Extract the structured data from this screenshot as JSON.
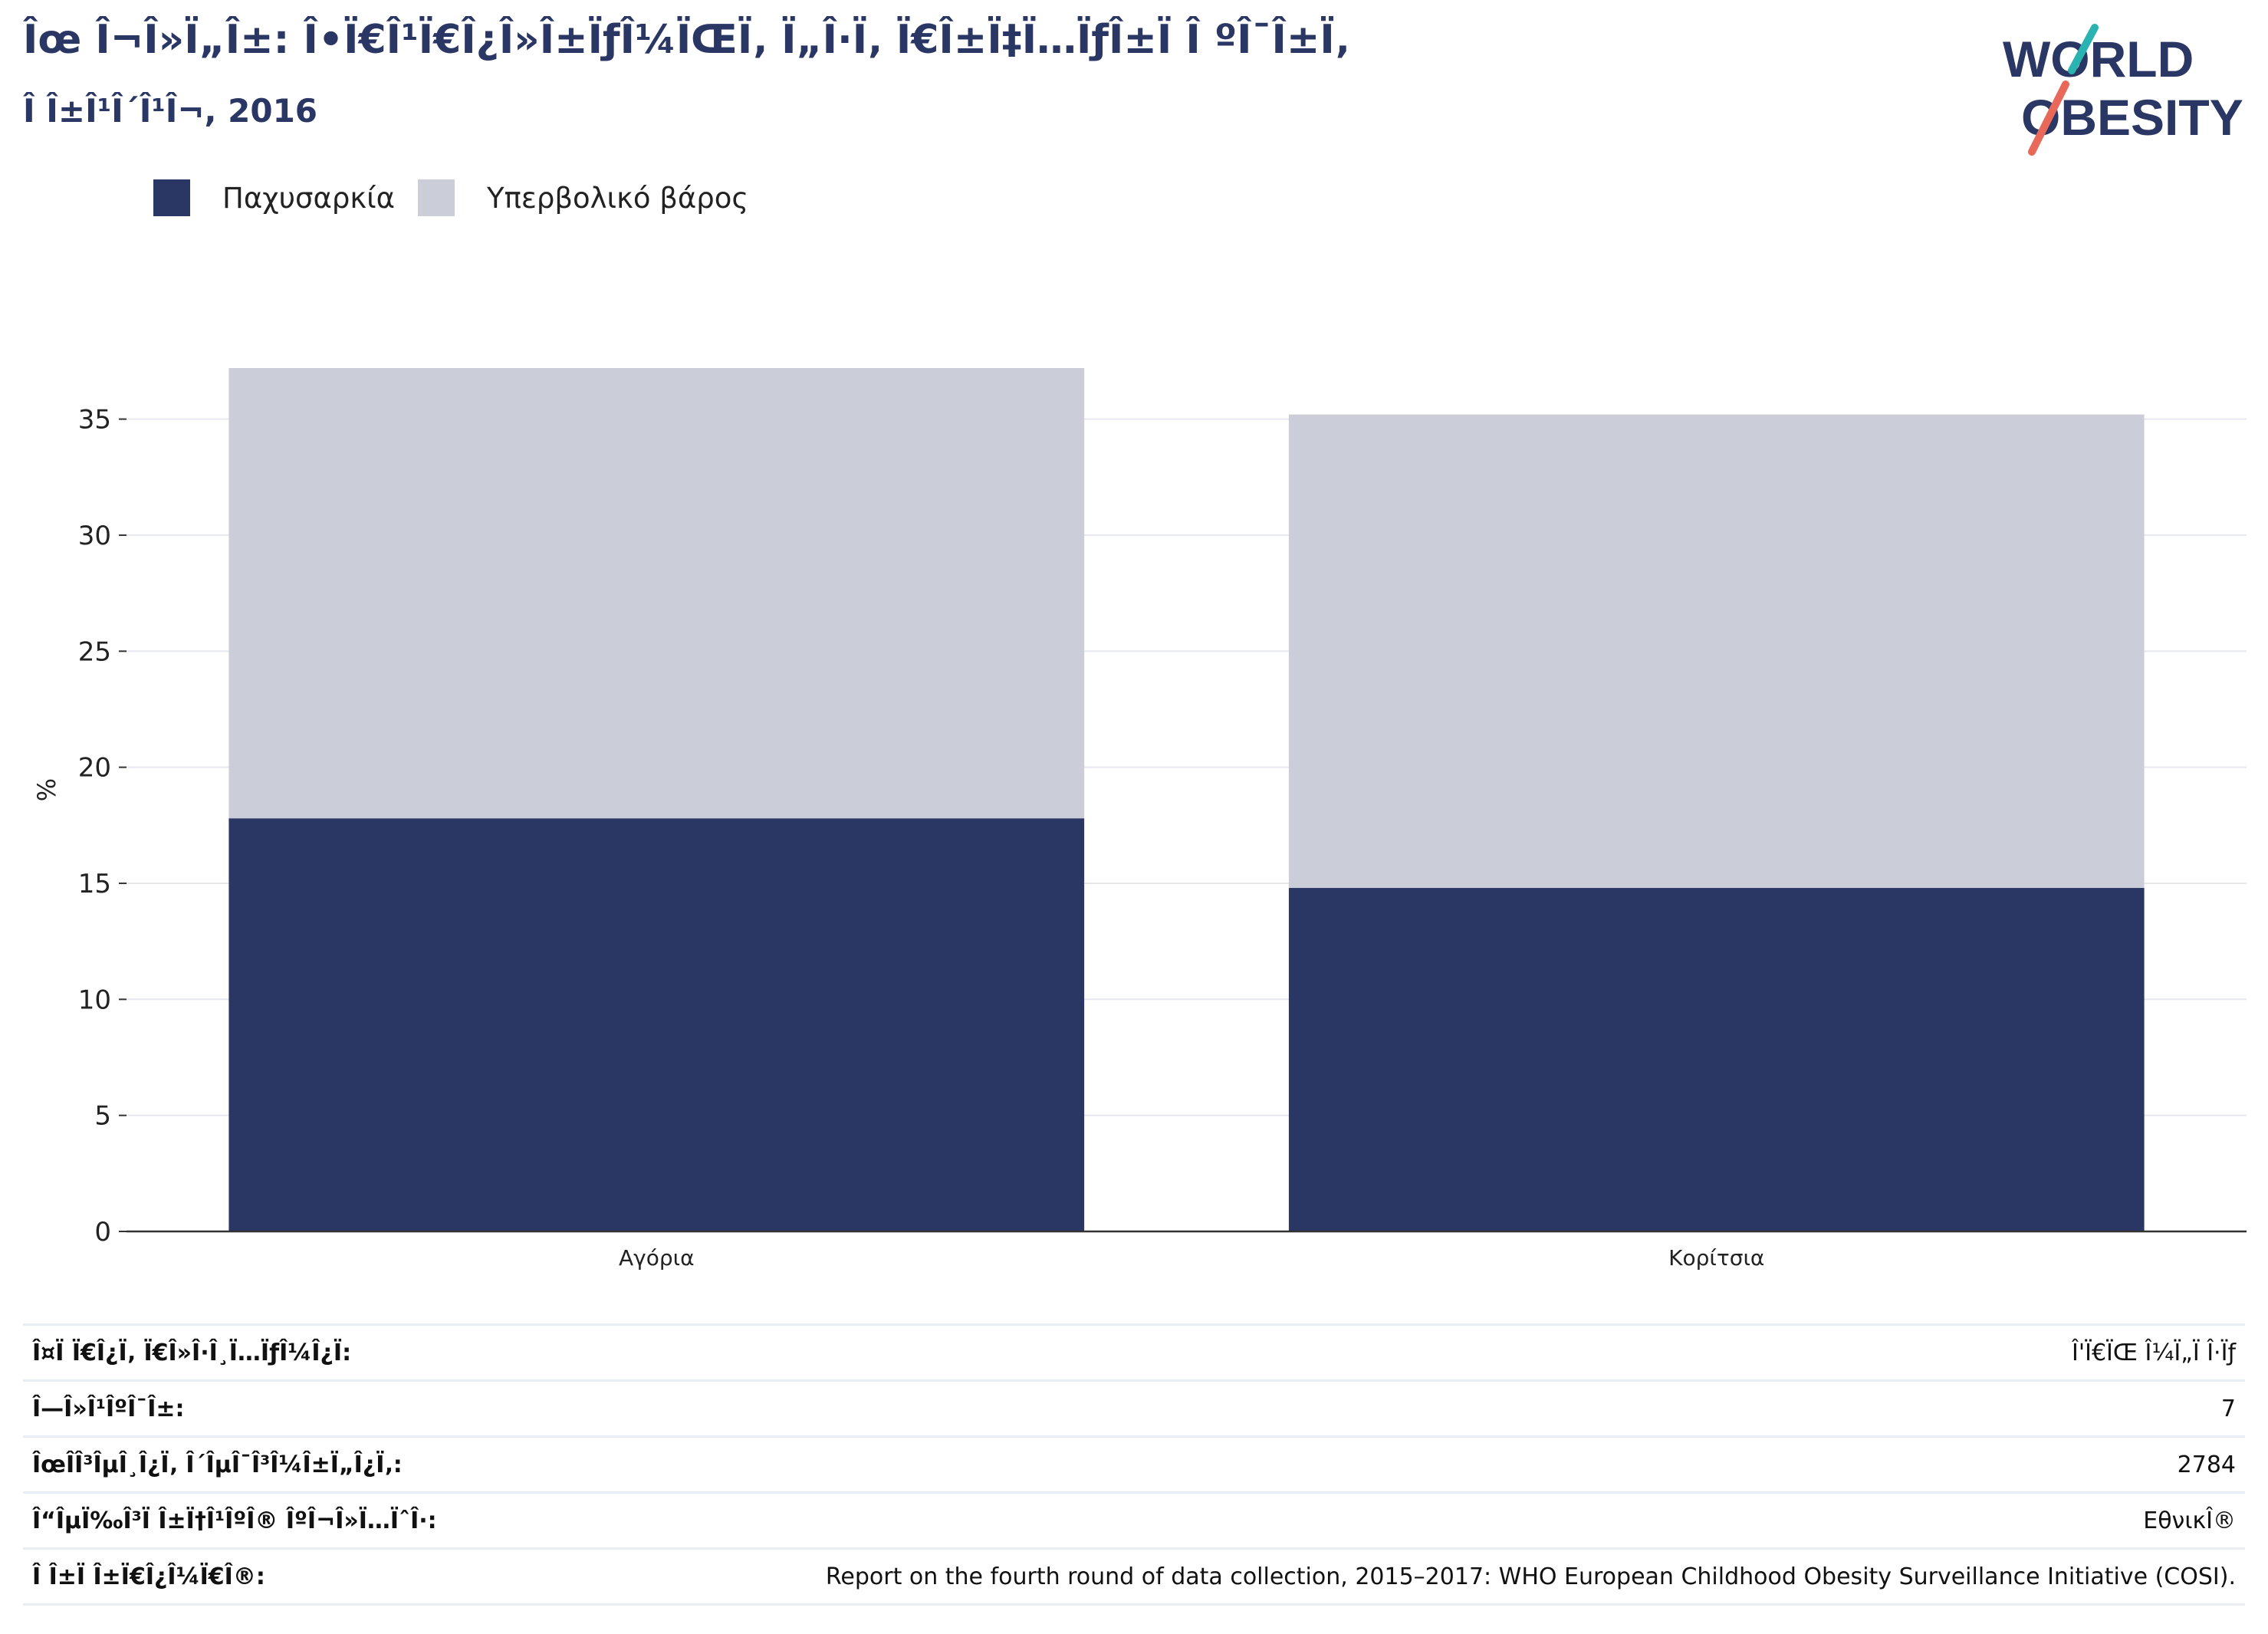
{
  "header": {
    "title": "Îœ Î¬Î»Ï„Î±: Î•Ï€Î¹Ï€Î¿Î»Î±ÏƒÎ¼ÏŒÏ‚ Ï„Î·Ï‚ Ï€Î±Ï‡Ï…ÏƒÎ±Ï Î ºÎ¯Î±Ï‚",
    "subtitle": "Î Î±Î¹Î´Î¹Î¬, 2016"
  },
  "logo": {
    "line1": "WORLD",
    "line2": "OBESITY"
  },
  "colors": {
    "obesity": "#2a3664",
    "overweight": "#cbcdd9",
    "title": "#2a3664",
    "logo_teal": "#2bb3b1",
    "logo_red": "#e8695a"
  },
  "legend": [
    {
      "label": "Παχυσαρκία",
      "color": "#2a3664"
    },
    {
      "label": "Υπερβολικό βάρος",
      "color": "#cbcdd9"
    }
  ],
  "chart_data": {
    "type": "bar",
    "stacked": true,
    "categories": [
      "Αγόρια",
      "Κορίτσια"
    ],
    "series": [
      {
        "name": "Παχυσαρκία",
        "values": [
          17.8,
          14.8
        ]
      },
      {
        "name": "Υπερβολικό βάρος",
        "values": [
          19.4,
          20.4
        ]
      }
    ],
    "ylabel": "%",
    "ylim": [
      0,
      37.2
    ],
    "yticks": [
      0,
      5,
      10,
      15,
      20,
      25,
      30,
      35
    ],
    "grid": true
  },
  "info": [
    {
      "label": "Î¤Ï Ï€Î¿Ï‚ Ï€Î»Î·Î¸Ï…ÏƒÎ¼Î¿Ï:",
      "value": "Î'Ï€ÏŒ Î¼Ï„Ï Î·Ïƒ"
    },
    {
      "label": "Î—Î»Î¹ÎºÎ¯Î±:",
      "value": "7"
    },
    {
      "label": "ÎœÎ­Î³ÎµÎ¸Î¿Ï‚ Î´ÎµÎ¯Î³Î¼Î±Ï„Î¿Ï‚:",
      "value": "2784"
    },
    {
      "label": "Î“ÎµÏ‰Î³Ï Î±Ï†Î¹ÎºÎ® ÎºÎ¬Î»Ï…ÏˆÎ·:",
      "value": "ΕθνικÎ®"
    },
    {
      "label": "Î Î±Ï Î±Ï€Î¿Î¼Ï€Î®:",
      "value": "Report on the fourth round of data collection, 2015–2017: WHO European Childhood Obesity Surveillance Initiative (COSI)."
    }
  ]
}
